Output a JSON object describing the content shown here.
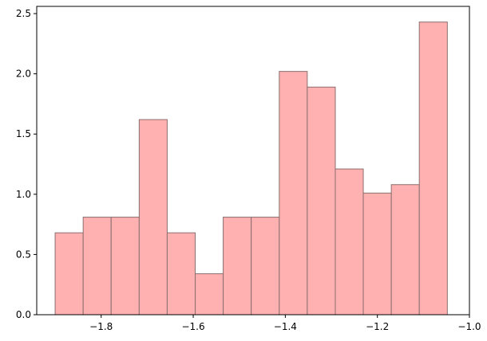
{
  "chart_data": {
    "type": "histogram",
    "bins": [
      -1.9,
      -1.8391,
      -1.7783,
      -1.7174,
      -1.6566,
      -1.5957,
      -1.5349,
      -1.474,
      -1.4131,
      -1.3523,
      -1.2914,
      -1.2306,
      -1.1697,
      -1.1089,
      -1.048
    ],
    "values": [
      0.68,
      0.81,
      0.81,
      1.62,
      0.68,
      0.34,
      0.81,
      0.81,
      2.02,
      1.89,
      1.21,
      1.01,
      1.08,
      2.43
    ],
    "color": "#ffb0b0",
    "edgecolor": "#8c6e6e",
    "xlim": [
      -1.94,
      -1.0
    ],
    "ylim": [
      0,
      2.56
    ],
    "xticks": [
      {
        "value": -1.8,
        "label": "−1.8"
      },
      {
        "value": -1.6,
        "label": "−1.6"
      },
      {
        "value": -1.4,
        "label": "−1.4"
      },
      {
        "value": -1.2,
        "label": "−1.2"
      },
      {
        "value": -1.0,
        "label": "−1.0"
      }
    ],
    "yticks": [
      {
        "value": 0,
        "label": "0.0"
      },
      0.5,
      {
        "value": 1.0,
        "label": "1.0"
      },
      1.5,
      {
        "value": 2.0,
        "label": "2.0"
      },
      2.5
    ]
  }
}
